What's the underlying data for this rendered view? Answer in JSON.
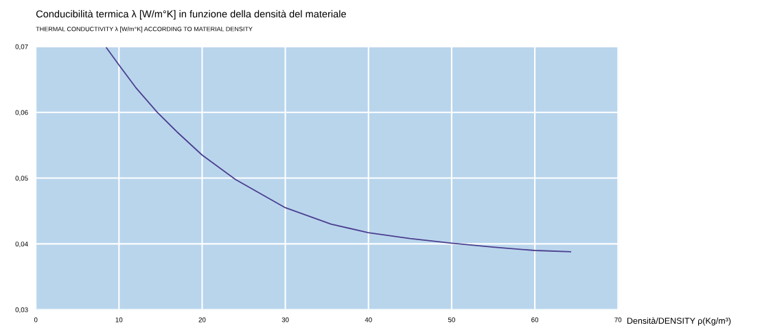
{
  "chart_data": {
    "type": "line",
    "title": "Conducibilità termica λ [W/m°K] in funzione della densità del materiale",
    "subtitle": "THERMAL CONDUCTIVITY λ [W/m°K] ACCORDING TO MATERIAL DENSITY",
    "xlabel": "Densità/DENSITY ρ(Kg/m³)",
    "x": [
      8.5,
      10,
      12,
      14.6,
      17,
      20,
      24,
      30,
      35.5,
      40,
      45,
      50,
      55,
      60,
      64.3
    ],
    "series": [
      {
        "color": "#4b3f8f",
        "values": [
          0.0698,
          0.0672,
          0.0638,
          0.06,
          0.057,
          0.0535,
          0.0498,
          0.0455,
          0.043,
          0.0417,
          0.0408,
          0.0401,
          0.0395,
          0.039,
          0.0388
        ]
      }
    ],
    "xlim": [
      0,
      70
    ],
    "xticks": [
      0,
      10,
      20,
      30,
      40,
      50,
      60,
      70
    ],
    "ylim": [
      0.03,
      0.07
    ],
    "yticks": [
      {
        "value": 0.03,
        "label": "0,03"
      },
      {
        "value": 0.04,
        "label": "0,04"
      },
      {
        "value": 0.05,
        "label": "0,05"
      },
      {
        "value": 0.06,
        "label": "0,06"
      },
      {
        "value": 0.07,
        "label": "0,07"
      }
    ],
    "grid": true,
    "marker": "none",
    "line_style": "solid"
  }
}
